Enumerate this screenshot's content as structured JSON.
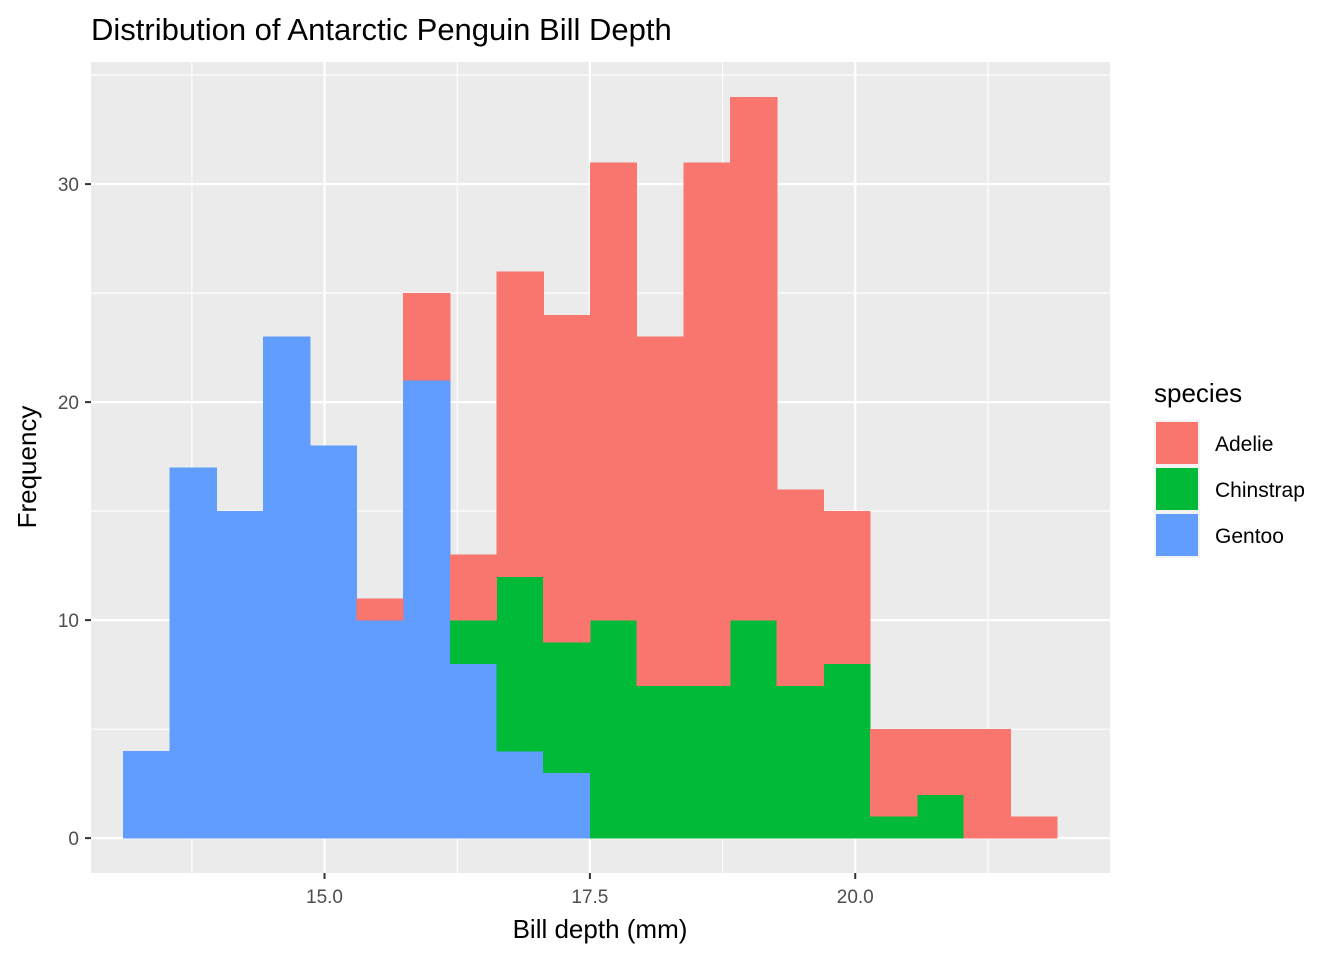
{
  "chart_data": {
    "type": "bar",
    "subtype": "stacked-histogram",
    "title": "Distribution of Antarctic Penguin Bill Depth",
    "xlabel": "Bill depth (mm)",
    "ylabel": "Frequency",
    "xlim": [
      12.8,
      22.4
    ],
    "ylim": [
      -1.6,
      35.6
    ],
    "bin_width": 0.44,
    "xticks": [
      {
        "value": 15.0,
        "label": "15.0"
      },
      {
        "value": 17.5,
        "label": "17.5"
      },
      {
        "value": 20.0,
        "label": "20.0"
      }
    ],
    "yticks": [
      {
        "value": 0,
        "label": "0"
      },
      {
        "value": 10,
        "label": "10"
      },
      {
        "value": 20,
        "label": "20"
      },
      {
        "value": 30,
        "label": "30"
      }
    ],
    "bin_starts": [
      13.1,
      13.54,
      13.98,
      14.42,
      14.86,
      15.3,
      15.74,
      16.18,
      16.62,
      17.06,
      17.5,
      17.94,
      18.38,
      18.82,
      19.26,
      19.7,
      20.14,
      20.58,
      21.02,
      21.46
    ],
    "series": [
      {
        "name": "Gentoo",
        "color": "#619CFF",
        "values": [
          4,
          17,
          15,
          23,
          18,
          10,
          21,
          8,
          4,
          3,
          0,
          0,
          0,
          0,
          0,
          0,
          0,
          0,
          0,
          0
        ]
      },
      {
        "name": "Chinstrap",
        "color": "#00BA38",
        "values": [
          0,
          0,
          0,
          0,
          0,
          0,
          0,
          2,
          8,
          6,
          10,
          7,
          7,
          10,
          7,
          8,
          1,
          2,
          0,
          0
        ]
      },
      {
        "name": "Adelie",
        "color": "#F8766D",
        "values": [
          0,
          0,
          0,
          0,
          0,
          1,
          4,
          3,
          14,
          15,
          21,
          16,
          24,
          24,
          9,
          7,
          4,
          3,
          5,
          1
        ]
      }
    ],
    "grid": true,
    "legend": {
      "title": "species",
      "position": "right",
      "entries": [
        {
          "label": "Adelie",
          "color": "#F8766D"
        },
        {
          "label": "Chinstrap",
          "color": "#00BA38"
        },
        {
          "label": "Gentoo",
          "color": "#619CFF"
        }
      ]
    }
  }
}
